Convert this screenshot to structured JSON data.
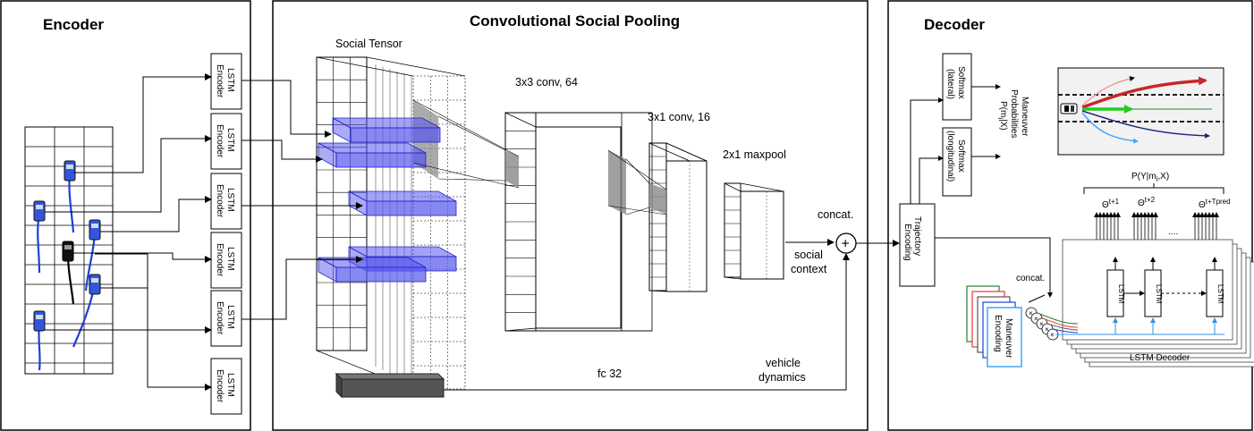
{
  "panels": {
    "encoder_title": "Encoder",
    "pooling_title": "Convolutional Social Pooling",
    "decoder_title": "Decoder"
  },
  "encoder": {
    "lstm_label_line1": "LSTM",
    "lstm_label_line2": "Encoder"
  },
  "pooling": {
    "social_tensor": "Social Tensor",
    "conv1": "3x3 conv, 64",
    "conv2": "3x1 conv, 16",
    "maxpool": "2x1 maxpool",
    "fc": "fc 32",
    "concat": "concat.",
    "social_context_line1": "social",
    "social_context_line2": "context",
    "vehicle_dynamics_line1": "vehicle",
    "vehicle_dynamics_line2": "dynamics",
    "plus": "+"
  },
  "decoder": {
    "softmax_lat_line1": "Softmax",
    "softmax_lat_line2": "(lateral)",
    "softmax_lon_line1": "Softmax",
    "softmax_lon_line2": "(longitudinal)",
    "maneuver_prob_line1": "Maneuver",
    "maneuver_prob_line2": "Probabilities",
    "maneuver_prob_line3": "P(m",
    "maneuver_prob_sub": "i",
    "maneuver_prob_line3b": "|X)",
    "traj_enc_line1": "Trajectory",
    "traj_enc_line2": "Encoding",
    "pyx_a": "P(Y|m",
    "pyx_sub": "i",
    "pyx_b": ",X)",
    "theta": "Θ",
    "theta1_sup": "t+1",
    "theta2_sup": "t+2",
    "theta3_sup": "t+Tpred",
    "dots": "....",
    "lstm": "LSTM",
    "concat": "concat.",
    "maneuver_enc_line1": "Maneuver",
    "maneuver_enc_line2": "Encoding",
    "lstm_decoder": "LSTM Decoder",
    "x_mark": "×"
  },
  "colors": {
    "blue_fill": "#5555ee",
    "blue_stroke": "#2222cc",
    "gray_fill": "#888888",
    "arrow_red": "#c62828",
    "arrow_green": "#22cc22",
    "arrow_blue": "#1a237e",
    "arrow_lightblue": "#42a5f5",
    "arrow_pink": "#ef9a9a"
  }
}
